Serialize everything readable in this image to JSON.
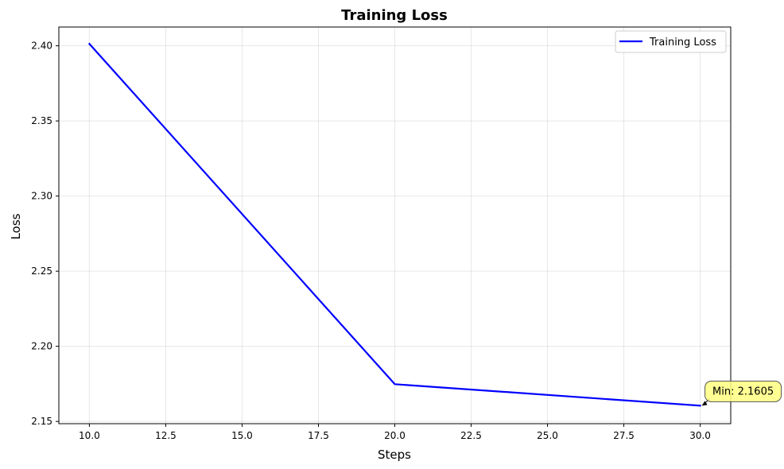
{
  "chart_data": {
    "type": "line",
    "title": "Training Loss",
    "xlabel": "Steps",
    "ylabel": "Loss",
    "xlim": [
      9,
      31
    ],
    "ylim": [
      2.1485,
      2.4125
    ],
    "xticks": [
      10.0,
      12.5,
      15.0,
      17.5,
      20.0,
      22.5,
      25.0,
      27.5,
      30.0
    ],
    "xtick_labels": [
      "10.0",
      "12.5",
      "15.0",
      "17.5",
      "20.0",
      "22.5",
      "25.0",
      "27.5",
      "30.0"
    ],
    "yticks": [
      2.15,
      2.2,
      2.25,
      2.3,
      2.35,
      2.4
    ],
    "ytick_labels": [
      "2.15",
      "2.20",
      "2.25",
      "2.30",
      "2.35",
      "2.40"
    ],
    "grid": true,
    "legend": "top-right",
    "series": [
      {
        "name": "Training Loss",
        "color": "#0000ff",
        "x": [
          10,
          20,
          30
        ],
        "y": [
          2.4013,
          2.1748,
          2.1605
        ]
      }
    ],
    "annotations": [
      {
        "text": "Min: 2.1605",
        "x": 30,
        "y": 2.1605,
        "box_color": "#ffff80"
      }
    ]
  }
}
